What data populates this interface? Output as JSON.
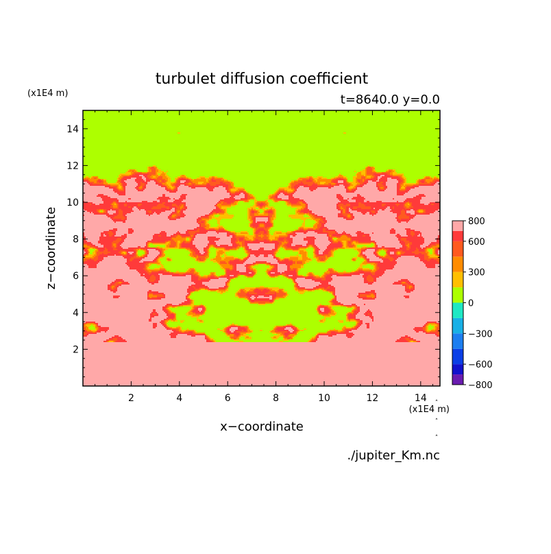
{
  "chart_data": {
    "type": "heatmap",
    "title": "turbulet diffusion coefficient",
    "subtitle": "t=8640.0 y=0.0",
    "xlabel": "x−coordinate",
    "ylabel": "z−coordinate",
    "x_unit": "(x1E4 m)",
    "z_unit": "(x1E4 m)",
    "source": "./jupiter_Km.nc",
    "xlim": [
      0,
      14.8
    ],
    "ylim": [
      0,
      15
    ],
    "x_ticks": [
      2,
      4,
      6,
      8,
      10,
      12,
      14
    ],
    "y_ticks": [
      2,
      4,
      6,
      8,
      10,
      12,
      14
    ],
    "colorbar": {
      "levels": [
        -800,
        -700,
        -600,
        -450,
        -300,
        -150,
        0,
        150,
        300,
        450,
        600,
        700,
        800
      ],
      "tick_values": [
        800,
        600,
        300,
        0,
        -300,
        -600,
        -800
      ],
      "tick_labels": [
        "800",
        "600",
        "300",
        "0",
        "−300",
        "−600",
        "−800"
      ],
      "colors": [
        "#6a1cb0",
        "#1212cc",
        "#0b3fe6",
        "#1c7ef0",
        "#18b0e6",
        "#1ee8c4",
        "#adff00",
        "#ffbf00",
        "#ff8c00",
        "#ff5a1f",
        "#ff3a3a",
        "#ffa8a8"
      ]
    },
    "field_note": "Contoured Km field in the x-z plane, mirror-symmetric about x=7.4: background near 800 (pink) below z~2.4 and in lateral bands between z~2.5 and z~12.5; values near 0 (green) above z~12 and in broad blobs; thin orange/red/yellow bands (150-700) at interfaces."
  }
}
